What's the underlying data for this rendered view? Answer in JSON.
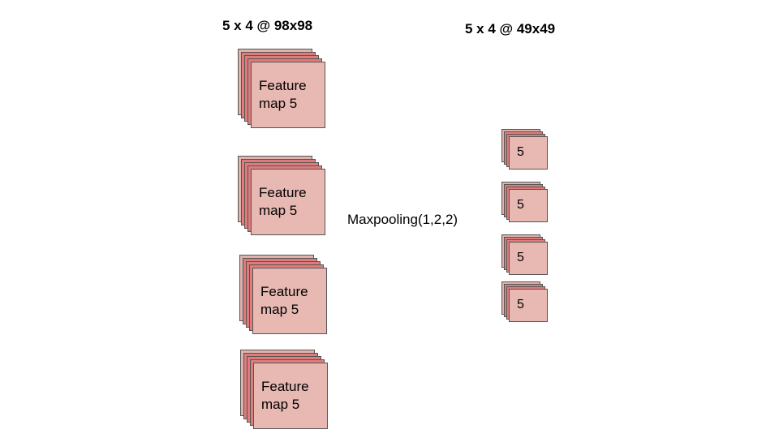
{
  "colors": {
    "back_sheet": "#dfb2ac",
    "mid_sheet": "#e07b7b",
    "front_sheet": "#e8b8b2",
    "outline": "#555555"
  },
  "input_group": {
    "heading": "5 x 4 @ 98x98",
    "maps": [
      {
        "label": "Feature\nmap 5"
      },
      {
        "label": "Feature\nmap 5"
      },
      {
        "label": "Feature\nmap 5"
      },
      {
        "label": "Feature\nmap 5"
      }
    ]
  },
  "operation": {
    "label": "Maxpooling(1,2,2)"
  },
  "output_group": {
    "heading": "5 x 4 @ 49x49",
    "maps": [
      {
        "label": "5"
      },
      {
        "label": "5"
      },
      {
        "label": "5"
      },
      {
        "label": "5"
      }
    ]
  }
}
